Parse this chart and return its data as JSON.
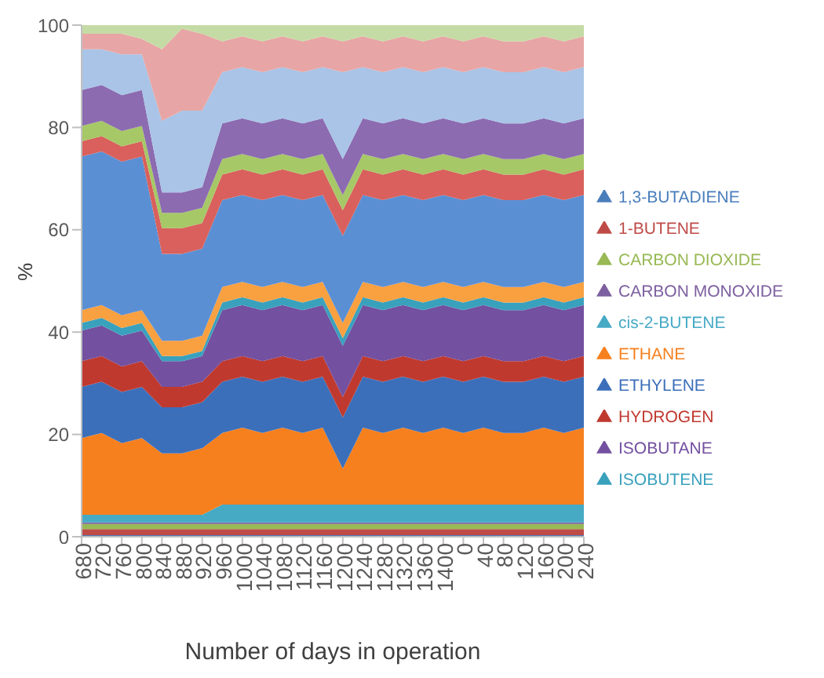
{
  "chart_data": {
    "type": "area",
    "stacked": true,
    "xlabel": "Number of days in operation",
    "ylabel": "%",
    "legend": "right",
    "categories": [
      "680",
      "720",
      "760",
      "800",
      "840",
      "880",
      "920",
      "960",
      "1000",
      "1040",
      "1080",
      "1120",
      "1160",
      "1200",
      "1240",
      "1280",
      "1320",
      "1360",
      "1400",
      "0",
      "40",
      "80",
      "120",
      "160",
      "200",
      "240"
    ],
    "ylim": [
      0,
      100
    ],
    "yticks": [
      0,
      20,
      40,
      60,
      80,
      100
    ],
    "series": [
      {
        "name": "1,3-BUTADIENE",
        "color": "#4a7ebb",
        "values": [
          0.3,
          0.3,
          0.3,
          0.3,
          0.3,
          0.3,
          0.3,
          0.3,
          0.3,
          0.3,
          0.3,
          0.3,
          0.3,
          0.3,
          0.3,
          0.3,
          0.3,
          0.3,
          0.3,
          0.3,
          0.3,
          0.3,
          0.3,
          0.3,
          0.3,
          0.3
        ]
      },
      {
        "name": "1-BUTENE",
        "color": "#be4b48",
        "values": [
          1.2,
          1.2,
          1.2,
          1.2,
          1.2,
          1.2,
          1.2,
          1.2,
          1.2,
          1.2,
          1.2,
          1.2,
          1.2,
          1.2,
          1.2,
          1.2,
          1.2,
          1.2,
          1.2,
          1.2,
          1.2,
          1.2,
          1.2,
          1.2,
          1.2,
          1.2
        ]
      },
      {
        "name": "CARBON DIOXIDE",
        "color": "#98b954",
        "values": [
          1,
          1,
          1,
          1,
          1,
          1,
          1,
          1,
          1,
          1,
          1,
          1,
          1,
          1,
          1,
          1,
          1,
          1,
          1,
          1,
          1,
          1,
          1,
          1,
          1,
          1
        ]
      },
      {
        "name": "CARBON MONOXIDE",
        "color": "#7d60a0",
        "values": [
          0.3,
          0.3,
          0.3,
          0.3,
          0.3,
          0.3,
          0.3,
          0.3,
          0.3,
          0.3,
          0.3,
          0.3,
          0.3,
          0.3,
          0.3,
          0.3,
          0.3,
          0.3,
          0.3,
          0.3,
          0.3,
          0.3,
          0.3,
          0.3,
          0.3,
          0.3
        ]
      },
      {
        "name": "cis-2-BUTENE",
        "color": "#46aac5",
        "values": [
          1.5,
          1.5,
          1.5,
          1.5,
          1.5,
          1.5,
          1.5,
          3.5,
          3.5,
          3.5,
          3.5,
          3.5,
          3.5,
          3.5,
          3.5,
          3.5,
          3.5,
          3.5,
          3.5,
          3.5,
          3.5,
          3.5,
          3.5,
          3.5,
          3.5,
          3.5
        ]
      },
      {
        "name": "ETHANE",
        "color": "#f7801e",
        "values": [
          15,
          16,
          14,
          15,
          12,
          12,
          13,
          14,
          15,
          14,
          15,
          14,
          15,
          7,
          15,
          14,
          15,
          14,
          15,
          14,
          15,
          14,
          14,
          15,
          14,
          15
        ]
      },
      {
        "name": "ETHYLENE",
        "color": "#3c6fba",
        "values": [
          10,
          10,
          10,
          10,
          9,
          9,
          9,
          10,
          10,
          10,
          10,
          10,
          10,
          10,
          10,
          10,
          10,
          10,
          10,
          10,
          10,
          10,
          10,
          10,
          10,
          10
        ]
      },
      {
        "name": "HYDROGEN",
        "color": "#c0392f",
        "values": [
          5,
          5,
          5,
          5,
          4,
          4,
          4,
          4,
          4,
          4,
          4,
          4,
          4,
          4,
          4,
          4,
          4,
          4,
          4,
          4,
          4,
          4,
          4,
          4,
          4,
          4
        ]
      },
      {
        "name": "ISOBUTANE",
        "color": "#7350a0",
        "values": [
          6,
          6,
          6,
          6,
          5,
          5,
          5,
          10,
          10,
          10,
          10,
          10,
          10,
          10,
          10,
          10,
          10,
          10,
          10,
          10,
          10,
          10,
          10,
          10,
          10,
          10
        ]
      },
      {
        "name": "ISOBUTENE",
        "color": "#3aa1bd",
        "values": [
          1.5,
          1.5,
          1.5,
          1.5,
          1,
          1,
          1,
          1.5,
          1.5,
          1.5,
          1.5,
          1.5,
          1.5,
          1.5,
          1.5,
          1.5,
          1.5,
          1.5,
          1.5,
          1.5,
          1.5,
          1.5,
          1.5,
          1.5,
          1.5,
          1.5
        ]
      },
      {
        "color": "#f9a040",
        "values": [
          2.5,
          2.5,
          2.5,
          2.5,
          3,
          3,
          3,
          3,
          3,
          3,
          3,
          3,
          3,
          3,
          3,
          3,
          3,
          3,
          3,
          3,
          3,
          3,
          3,
          3,
          3,
          3
        ]
      },
      {
        "color": "#5b8fd4",
        "values": [
          30,
          30,
          30,
          30,
          17,
          17,
          17,
          17,
          17,
          17,
          17,
          17,
          17,
          17,
          17,
          17,
          17,
          17,
          17,
          17,
          17,
          17,
          17,
          17,
          17,
          17
        ]
      },
      {
        "color": "#d9605c",
        "values": [
          3,
          3,
          3,
          3,
          5,
          5,
          5,
          5,
          5,
          5,
          5,
          5,
          5,
          5,
          5,
          5,
          5,
          5,
          5,
          5,
          5,
          5,
          5,
          5,
          5,
          5
        ]
      },
      {
        "color": "#a6c867",
        "values": [
          3,
          3,
          3,
          3,
          3,
          3,
          3,
          3,
          3,
          3,
          3,
          3,
          3,
          3,
          3,
          3,
          3,
          3,
          3,
          3,
          3,
          3,
          3,
          3,
          3,
          3
        ]
      },
      {
        "color": "#8c6bb1",
        "values": [
          7,
          7,
          7,
          7,
          4,
          4,
          4,
          7,
          7,
          7,
          7,
          7,
          7,
          7,
          7,
          7,
          7,
          7,
          7,
          7,
          7,
          7,
          7,
          7,
          7,
          7
        ]
      },
      {
        "color": "#a9c4e6",
        "values": [
          8,
          7,
          8,
          7,
          14,
          16,
          15,
          10,
          10,
          10,
          10,
          10,
          10,
          17,
          10,
          10,
          10,
          10,
          10,
          10,
          10,
          10,
          10,
          10,
          10,
          10
        ]
      },
      {
        "color": "#e8a5a5",
        "values": [
          3,
          3,
          4,
          3,
          14,
          16,
          15,
          6,
          6,
          6,
          6,
          6,
          6,
          6,
          6,
          6,
          6,
          6,
          6,
          6,
          6,
          6,
          6,
          6,
          6,
          6
        ]
      },
      {
        "color": "#c5dba5",
        "values": [
          1.7,
          1.7,
          1.7,
          2.7,
          4.7,
          0.7,
          1.7,
          3.2,
          2.2,
          3.2,
          2.2,
          3.2,
          2.2,
          3.2,
          2.2,
          3.2,
          2.2,
          3.2,
          2.2,
          3.2,
          2.2,
          3.2,
          3.2,
          2.2,
          3.2,
          2.2
        ]
      }
    ]
  }
}
